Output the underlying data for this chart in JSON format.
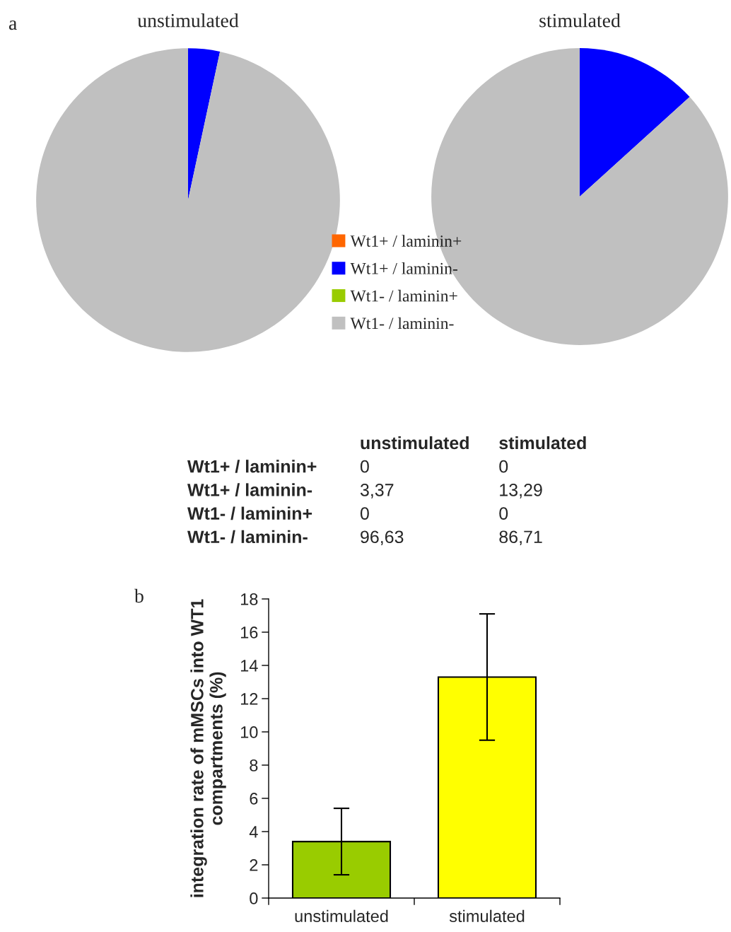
{
  "chart_data": [
    {
      "type": "pie",
      "title": "unstimulated",
      "annotations": [
        "a"
      ],
      "categories": [
        "Wt1+ / laminin+",
        "Wt1+ / laminin-",
        "Wt1- / laminin+",
        "Wt1- / laminin-"
      ],
      "values": [
        0,
        3.37,
        0,
        96.63
      ],
      "colors": [
        "#ff6600",
        "#0000ff",
        "#99cc00",
        "#c0c0c0"
      ],
      "legend": "bottom right"
    },
    {
      "type": "pie",
      "title": "stimulated",
      "categories": [
        null,
        null,
        null,
        null
      ],
      "values": [
        0,
        13.29,
        0,
        86.71
      ],
      "colors": [
        "#ff6600",
        "#0000ff",
        "#99cc00",
        "#c0c0c0"
      ]
    },
    {
      "type": "other",
      "categories": [
        "Wt1+ / laminin+",
        "Wt1+ / laminin-",
        "Wt1- / laminin+",
        "Wt1- / laminin-"
      ],
      "series": [
        {
          "name": "unstimulated",
          "values": [
            0,
            3.37,
            0,
            96.63
          ],
          "value_labels": [
            "0",
            "3,37",
            "0",
            "96,63"
          ]
        },
        {
          "name": "stimulated",
          "values": [
            0,
            13.29,
            0,
            86.71
          ],
          "value_labels": [
            "0",
            "13,29",
            "0",
            "86,71"
          ]
        }
      ]
    },
    {
      "type": "bar",
      "annotations": [
        "b"
      ],
      "ylabel": "integration rate of mMSCs into WT1\ncompartments (%)",
      "categories": [
        "unstimulated",
        "stimulated"
      ],
      "values": [
        3.4,
        13.3
      ],
      "colors": [
        "#99cc00",
        "#ffff00"
      ],
      "errors": [
        2.0,
        3.8
      ],
      "ylim": [
        0,
        18
      ],
      "yticks": [
        0,
        2,
        4,
        6,
        8,
        10,
        12,
        14,
        16,
        18
      ],
      "grid": false
    }
  ]
}
